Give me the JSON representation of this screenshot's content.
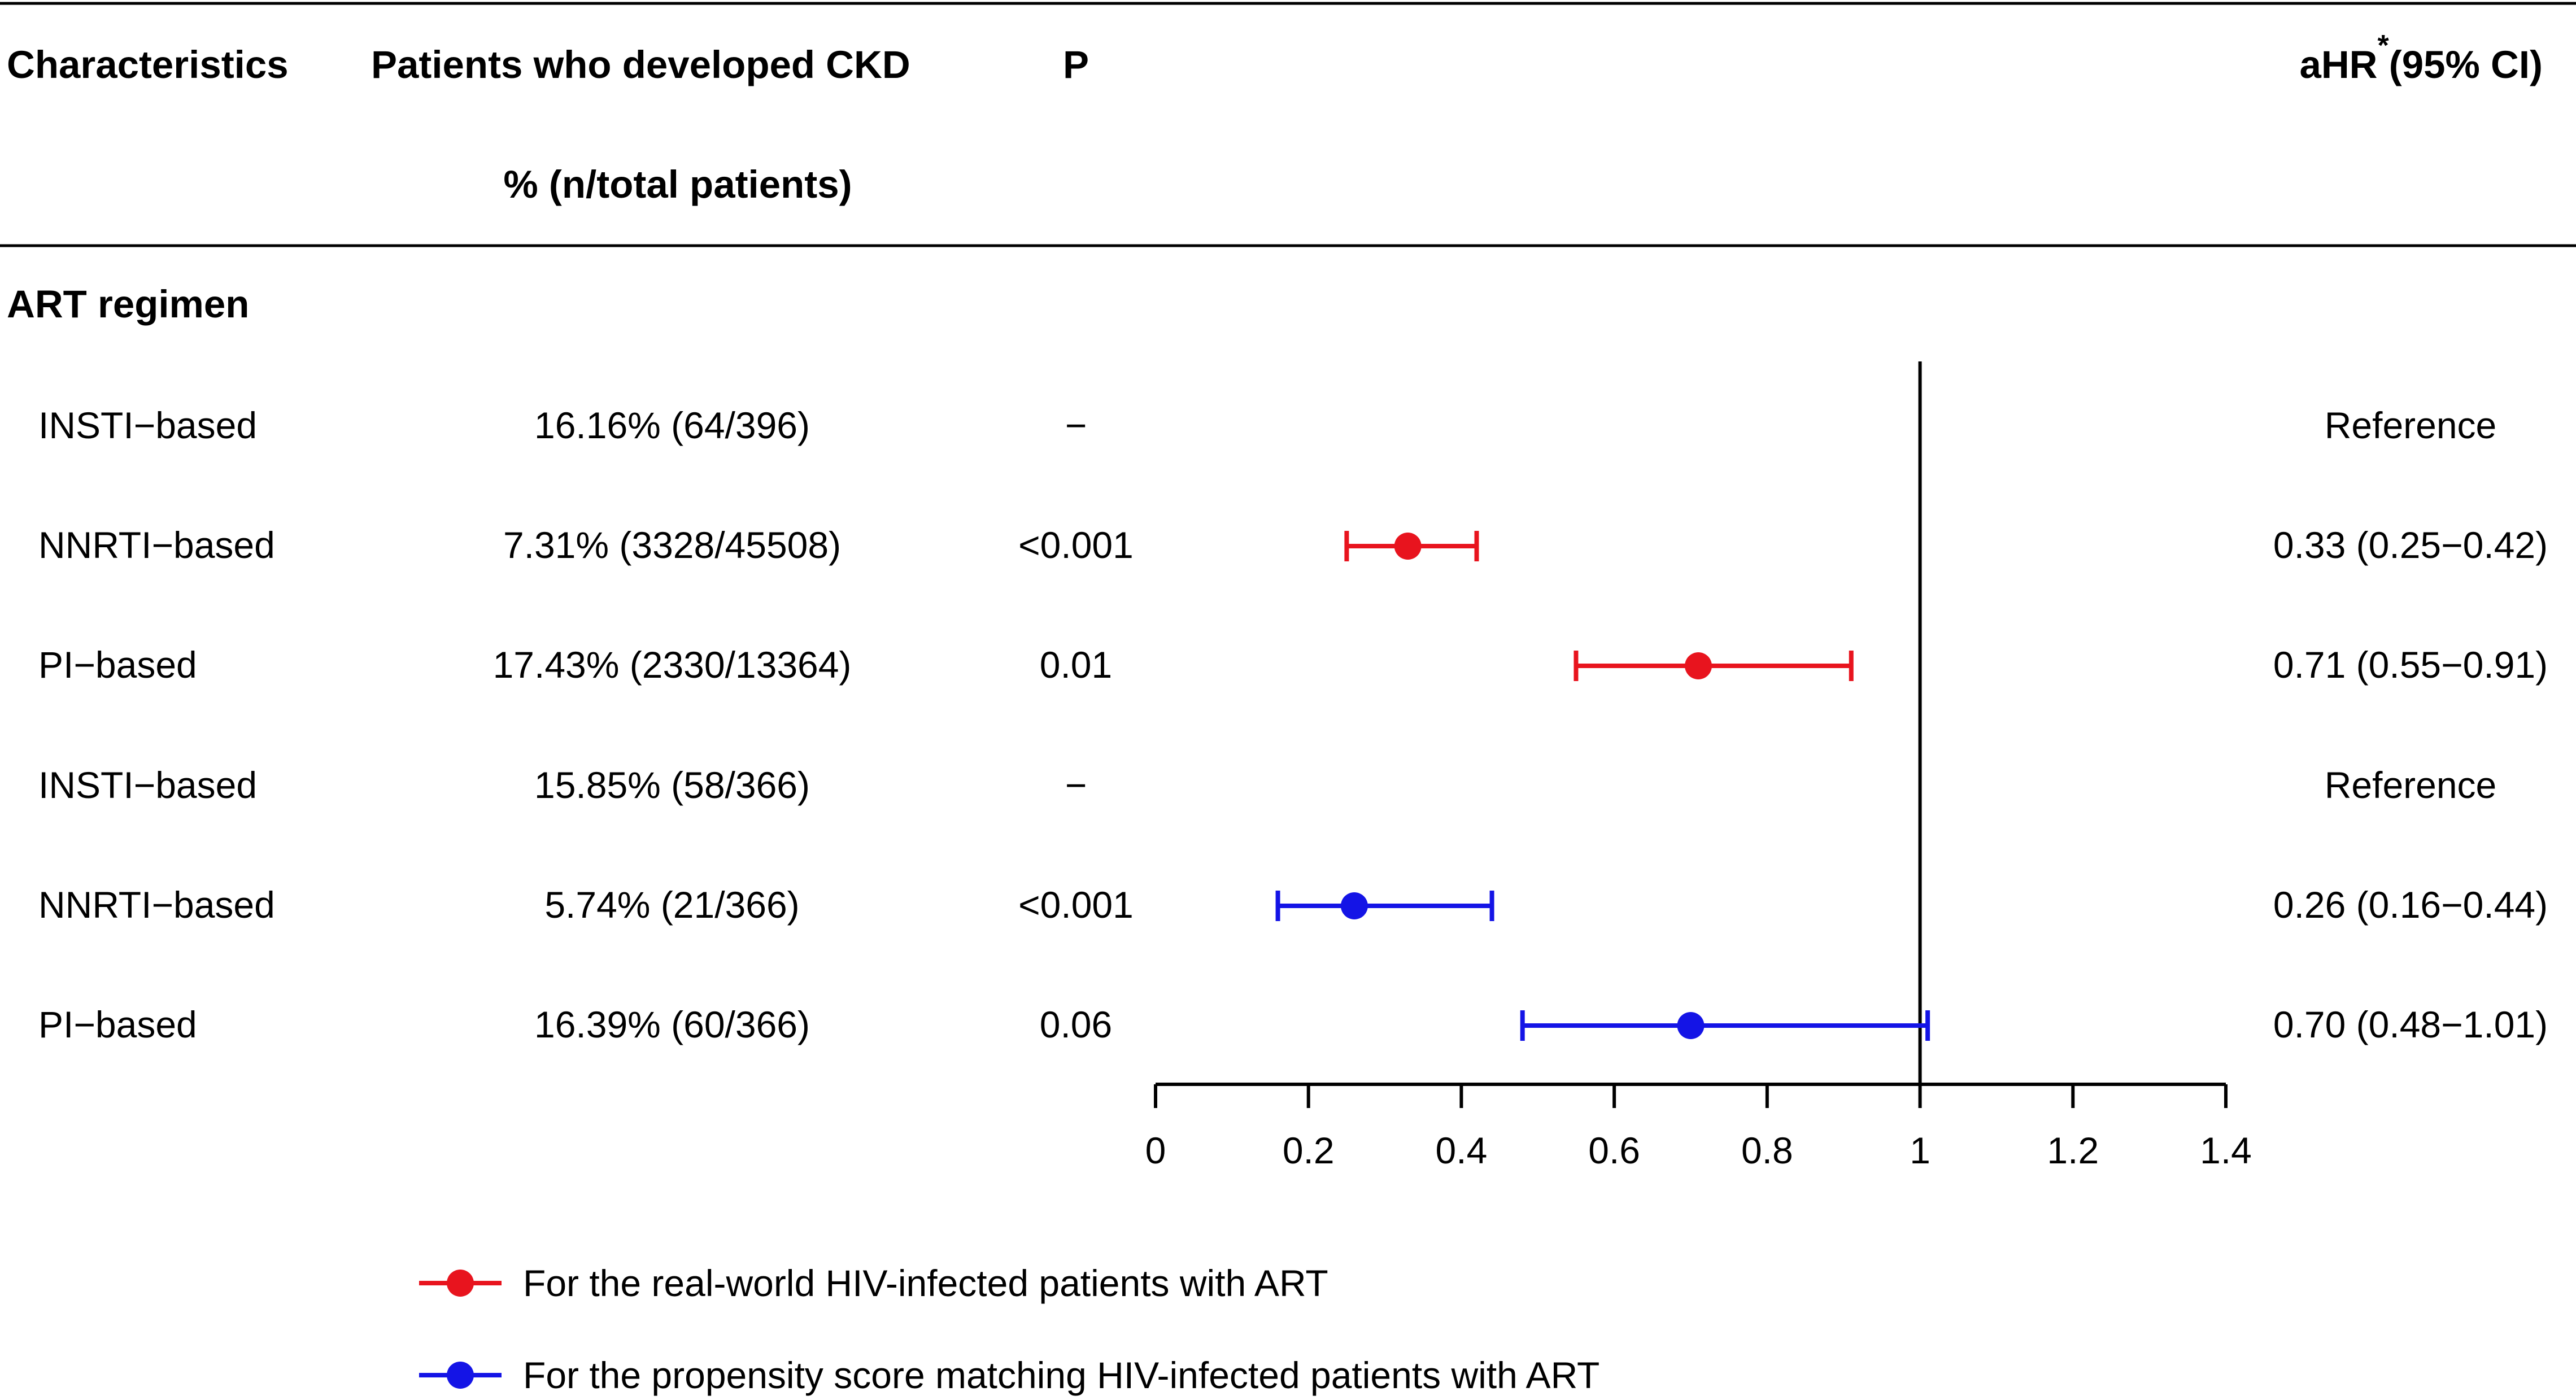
{
  "header": {
    "col_characteristics": "Characteristics",
    "col_patients_line1": "Patients who developed CKD",
    "col_patients_line2": "% (n/total patients)",
    "col_p": "P",
    "col_ahr_prefix": "aHR",
    "col_ahr_superscript": "*",
    "col_ahr_suffix": "(95% CI)"
  },
  "section_title": "ART regimen",
  "rows": [
    {
      "label": "INSTI−based",
      "patients": "16.16% (64/396)",
      "p": "−",
      "ahr_text": "Reference",
      "group": null
    },
    {
      "label": "NNRTI−based",
      "patients": "7.31% (3328/45508)",
      "p": "<0.001",
      "ahr_text": "0.33 (0.25−0.42)",
      "group": "real_world"
    },
    {
      "label": "PI−based",
      "patients": "17.43% (2330/13364)",
      "p": "0.01",
      "ahr_text": "0.71 (0.55−0.91)",
      "group": "real_world"
    },
    {
      "label": "INSTI−based",
      "patients": "15.85% (58/366)",
      "p": "−",
      "ahr_text": "Reference",
      "group": null
    },
    {
      "label": "NNRTI−based",
      "patients": "5.74% (21/366)",
      "p": "<0.001",
      "ahr_text": "0.26 (0.16−0.44)",
      "group": "psm"
    },
    {
      "label": "PI−based",
      "patients": "16.39% (60/366)",
      "p": "0.06",
      "ahr_text": "0.70 (0.48−1.01)",
      "group": "psm"
    }
  ],
  "legend": {
    "real_world": "For the real-world HIV-infected patients with ART",
    "psm": "For the propensity score matching HIV-infected patients with ART"
  },
  "colors": {
    "real_world": "#e8141e",
    "psm": "#1414e6",
    "axis": "#000000"
  },
  "chart_data": {
    "type": "forest",
    "title": "",
    "xlabel": "",
    "ylabel": "",
    "xlim": [
      0,
      1.4
    ],
    "x_ticks": [
      0,
      0.2,
      0.4,
      0.6,
      0.8,
      1,
      1.2,
      1.4
    ],
    "x_tick_labels": [
      "0",
      "0.2",
      "0.4",
      "0.6",
      "0.8",
      "1",
      "1.2",
      "1.4"
    ],
    "reference_line": 1,
    "series": [
      {
        "name": "For the real-world HIV-infected patients with ART",
        "key": "real_world",
        "points": [
          {
            "category": "NNRTI−based",
            "estimate": 0.33,
            "lower": 0.25,
            "upper": 0.42
          },
          {
            "category": "PI−based",
            "estimate": 0.71,
            "lower": 0.55,
            "upper": 0.91
          }
        ]
      },
      {
        "name": "For the propensity score matching HIV-infected patients with ART",
        "key": "psm",
        "points": [
          {
            "category": "NNRTI−based",
            "estimate": 0.26,
            "lower": 0.16,
            "upper": 0.44
          },
          {
            "category": "PI−based",
            "estimate": 0.7,
            "lower": 0.48,
            "upper": 1.01
          }
        ]
      }
    ]
  }
}
